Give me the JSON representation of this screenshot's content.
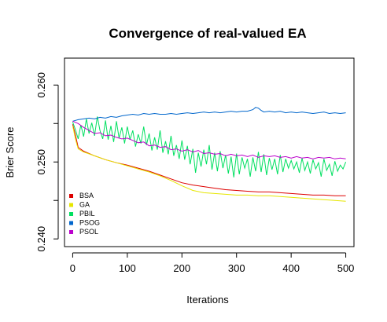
{
  "chart_data": {
    "type": "line",
    "title": "Convergence of real-valued EA",
    "xlabel": "Iterations",
    "ylabel": "Brier Score",
    "xlim": [
      -15,
      515
    ],
    "ylim": [
      0.239,
      0.2635
    ],
    "xticks": [
      0,
      100,
      200,
      300,
      400,
      500
    ],
    "yticks": [
      0.24,
      0.245,
      0.25,
      0.255,
      0.26
    ],
    "ytick_labels": [
      "0.240",
      "",
      "0.250",
      "",
      "0.260"
    ],
    "legend_position": "bottom-left",
    "grid": false,
    "series": [
      {
        "name": "BSA",
        "color": "#dd0000",
        "x": [
          0,
          5,
          10,
          20,
          40,
          60,
          80,
          100,
          120,
          140,
          160,
          180,
          200,
          220,
          240,
          260,
          280,
          300,
          320,
          340,
          360,
          380,
          400,
          420,
          440,
          460,
          480,
          500
        ],
        "y": [
          0.2549,
          0.2535,
          0.2519,
          0.2514,
          0.2508,
          0.2503,
          0.2499,
          0.2496,
          0.2492,
          0.2488,
          0.2483,
          0.2478,
          0.2473,
          0.247,
          0.2468,
          0.2466,
          0.2464,
          0.2463,
          0.2462,
          0.2461,
          0.2461,
          0.246,
          0.2459,
          0.2458,
          0.2457,
          0.2457,
          0.2456,
          0.2456
        ]
      },
      {
        "name": "GA",
        "color": "#e6e600",
        "x": [
          0,
          5,
          10,
          20,
          40,
          60,
          80,
          100,
          120,
          140,
          160,
          180,
          200,
          220,
          240,
          260,
          280,
          300,
          320,
          340,
          360,
          380,
          400,
          420,
          440,
          460,
          480,
          500
        ],
        "y": [
          0.2547,
          0.253,
          0.2517,
          0.2513,
          0.2508,
          0.2503,
          0.2499,
          0.2495,
          0.2491,
          0.2487,
          0.2482,
          0.2476,
          0.2469,
          0.2463,
          0.246,
          0.2459,
          0.2458,
          0.2457,
          0.2457,
          0.2456,
          0.2456,
          0.2455,
          0.2454,
          0.2453,
          0.2452,
          0.2451,
          0.245,
          0.2449
        ]
      },
      {
        "name": "PBIL",
        "color": "#00e060",
        "x": [
          0,
          5,
          10,
          15,
          20,
          25,
          30,
          35,
          40,
          45,
          50,
          55,
          60,
          65,
          70,
          75,
          80,
          85,
          90,
          95,
          100,
          105,
          110,
          115,
          120,
          125,
          130,
          135,
          140,
          145,
          150,
          155,
          160,
          165,
          170,
          175,
          180,
          185,
          190,
          195,
          200,
          205,
          210,
          215,
          220,
          225,
          230,
          235,
          240,
          245,
          250,
          255,
          260,
          265,
          270,
          275,
          280,
          285,
          290,
          295,
          300,
          305,
          310,
          315,
          320,
          325,
          330,
          335,
          340,
          345,
          350,
          355,
          360,
          365,
          370,
          375,
          380,
          385,
          390,
          395,
          400,
          405,
          410,
          415,
          420,
          425,
          430,
          435,
          440,
          445,
          450,
          455,
          460,
          465,
          470,
          475,
          480,
          485,
          490,
          495,
          500
        ],
        "y": [
          0.2552,
          0.2542,
          0.253,
          0.2548,
          0.2533,
          0.2556,
          0.2537,
          0.2551,
          0.2534,
          0.2559,
          0.2541,
          0.253,
          0.2554,
          0.2529,
          0.2547,
          0.2526,
          0.2553,
          0.2531,
          0.2545,
          0.2524,
          0.2546,
          0.2529,
          0.2541,
          0.252,
          0.2536,
          0.2524,
          0.2546,
          0.2522,
          0.2537,
          0.2515,
          0.2532,
          0.2516,
          0.2541,
          0.2512,
          0.2527,
          0.251,
          0.2534,
          0.2508,
          0.2522,
          0.2504,
          0.2528,
          0.2503,
          0.2521,
          0.2497,
          0.2517,
          0.2486,
          0.2512,
          0.2494,
          0.2516,
          0.2497,
          0.2522,
          0.249,
          0.2512,
          0.2488,
          0.2514,
          0.2492,
          0.2509,
          0.2485,
          0.2507,
          0.248,
          0.2511,
          0.2484,
          0.2506,
          0.2492,
          0.2504,
          0.2481,
          0.2506,
          0.2488,
          0.2513,
          0.2487,
          0.251,
          0.2483,
          0.2505,
          0.249,
          0.2504,
          0.2484,
          0.2509,
          0.2487,
          0.2504,
          0.2492,
          0.2502,
          0.2491,
          0.25,
          0.2486,
          0.2505,
          0.2489,
          0.25,
          0.2485,
          0.2503,
          0.2491,
          0.2499,
          0.2481,
          0.2504,
          0.2489,
          0.2497,
          0.2482,
          0.2501,
          0.2488,
          0.2496,
          0.2491,
          0.25
        ]
      },
      {
        "name": "PSOG",
        "color": "#0066cc",
        "x": [
          0,
          10,
          20,
          30,
          40,
          50,
          60,
          70,
          80,
          90,
          100,
          110,
          120,
          130,
          140,
          150,
          160,
          170,
          180,
          190,
          200,
          210,
          220,
          230,
          240,
          250,
          260,
          270,
          280,
          290,
          300,
          310,
          320,
          330,
          335,
          340,
          345,
          350,
          360,
          370,
          380,
          390,
          400,
          410,
          420,
          430,
          440,
          450,
          460,
          470,
          480,
          490,
          500
        ],
        "y": [
          0.2553,
          0.2555,
          0.2556,
          0.2557,
          0.2556,
          0.2558,
          0.2557,
          0.2559,
          0.2558,
          0.256,
          0.2561,
          0.2562,
          0.2561,
          0.2563,
          0.2562,
          0.2563,
          0.2562,
          0.2562,
          0.2563,
          0.2562,
          0.2563,
          0.2564,
          0.2563,
          0.2564,
          0.2565,
          0.2564,
          0.2565,
          0.2564,
          0.2565,
          0.2566,
          0.2565,
          0.2566,
          0.2566,
          0.2568,
          0.2571,
          0.257,
          0.2567,
          0.2565,
          0.2566,
          0.2565,
          0.2566,
          0.2564,
          0.2565,
          0.2564,
          0.2565,
          0.2564,
          0.2563,
          0.2564,
          0.2565,
          0.2563,
          0.2564,
          0.2563,
          0.2564
        ]
      },
      {
        "name": "PSOL",
        "color": "#bb00cc",
        "x": [
          0,
          10,
          20,
          30,
          40,
          50,
          60,
          70,
          80,
          90,
          100,
          110,
          120,
          130,
          140,
          150,
          160,
          170,
          180,
          190,
          200,
          210,
          220,
          230,
          240,
          250,
          260,
          270,
          280,
          290,
          300,
          310,
          320,
          330,
          340,
          350,
          360,
          370,
          380,
          390,
          400,
          410,
          420,
          430,
          440,
          450,
          460,
          470,
          480,
          490,
          500
        ],
        "y": [
          0.2553,
          0.255,
          0.2545,
          0.2541,
          0.2537,
          0.2538,
          0.2534,
          0.2535,
          0.2532,
          0.253,
          0.2531,
          0.2528,
          0.2525,
          0.2526,
          0.2521,
          0.2522,
          0.2519,
          0.252,
          0.2516,
          0.2517,
          0.2514,
          0.2516,
          0.2513,
          0.2515,
          0.2511,
          0.2512,
          0.251,
          0.2511,
          0.2508,
          0.251,
          0.2508,
          0.2509,
          0.2507,
          0.2509,
          0.2506,
          0.2508,
          0.2507,
          0.2508,
          0.2506,
          0.2507,
          0.2505,
          0.2507,
          0.2505,
          0.2506,
          0.2504,
          0.2506,
          0.2505,
          0.2506,
          0.2504,
          0.2505,
          0.2504
        ]
      }
    ]
  }
}
